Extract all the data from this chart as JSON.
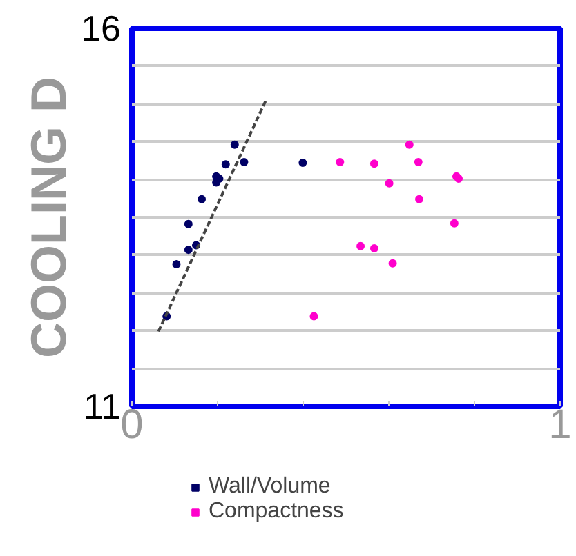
{
  "chart_data": {
    "type": "scatter",
    "ylabel": "COOLING D",
    "xlim": [
      0,
      1
    ],
    "xticks": [
      0,
      {
        "value": 0.2,
        "label": null
      },
      {
        "value": 0.4,
        "label": null
      },
      {
        "value": 0.6,
        "label": null
      },
      {
        "value": 0.8,
        "label": null
      },
      1
    ],
    "ylim": [
      11,
      16
    ],
    "yticks": [
      11,
      {
        "value": 11.5,
        "label": null
      },
      {
        "value": 12,
        "label": null
      },
      {
        "value": 12.5,
        "label": null
      },
      {
        "value": 13,
        "label": null
      },
      {
        "value": 13.5,
        "label": null
      },
      {
        "value": 14,
        "label": null
      },
      {
        "value": 14.5,
        "label": null
      },
      {
        "value": 15,
        "label": null
      },
      {
        "value": 15.5,
        "label": null
      },
      16
    ],
    "grid": "y",
    "legend": "bottom",
    "series": [
      {
        "name": "Wall/Volume",
        "color": "#000066",
        "marker": "circle",
        "x": [
          0.081,
          0.104,
          0.132,
          0.132,
          0.15,
          0.163,
          0.197,
          0.197,
          0.204,
          0.219,
          0.24,
          0.262,
          0.399
        ],
        "values": [
          12.19,
          12.88,
          13.41,
          13.07,
          13.13,
          13.74,
          13.96,
          14.04,
          14.01,
          14.2,
          14.46,
          14.23,
          14.22
        ]
      },
      {
        "name": "Compactness",
        "color": "#ff00cc",
        "marker": "circle",
        "x": [
          0.486,
          0.566,
          0.648,
          0.669,
          0.601,
          0.671,
          0.758,
          0.763,
          0.753,
          0.534,
          0.566,
          0.609,
          0.425
        ],
        "values": [
          14.23,
          14.21,
          14.46,
          14.23,
          13.95,
          13.74,
          14.04,
          14.01,
          13.42,
          13.12,
          13.09,
          12.89,
          12.19
        ]
      },
      {
        "type": "line",
        "color": "#444444",
        "line_style": "dashed",
        "x": [
          0.062,
          0.314
        ],
        "values": [
          11.99,
          15.06
        ]
      }
    ]
  }
}
